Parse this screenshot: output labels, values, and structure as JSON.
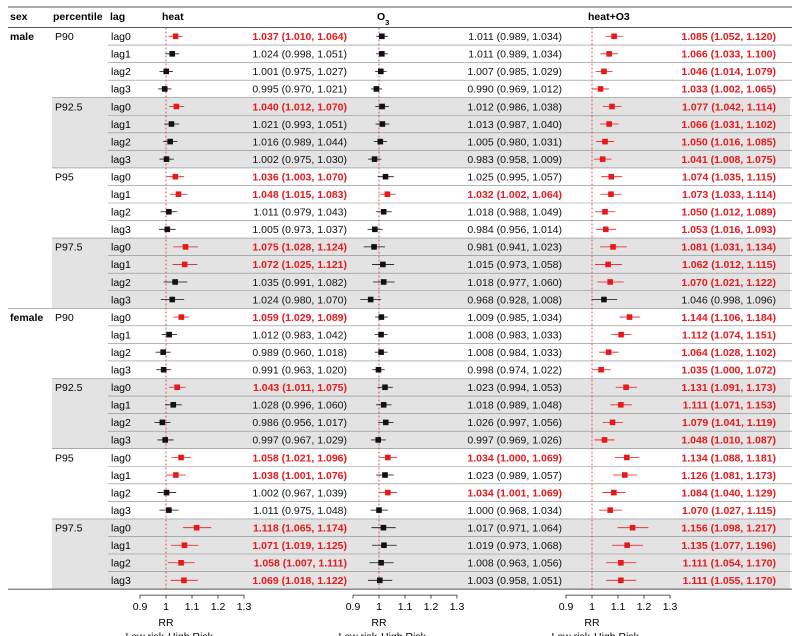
{
  "headers": {
    "sex": "sex",
    "percentile": "percentile",
    "lag": "lag",
    "heat": "heat",
    "o3": "O3",
    "heat_o3": "heat+O3"
  },
  "axis": {
    "xlabel": "RR",
    "low_label": "Low risk",
    "high_label": "High Risk",
    "ticks": [
      "0.9",
      "1",
      "1.1",
      "1.2",
      "1.3"
    ]
  },
  "colors": {
    "significant": "#e8191c",
    "nonsignificant": "#111111",
    "band": "#e3e3e3",
    "ref_line": "#cc3333"
  },
  "chart_data": {
    "type": "forest",
    "xlim": [
      0.9,
      1.3
    ],
    "reference_value": 1,
    "panels": [
      "heat",
      "O3",
      "heat+O3"
    ],
    "rows": [
      {
        "sex": "male",
        "percentile": "P90",
        "lag": "lag0",
        "heat": {
          "text": "1.037 (1.010, 1.064)",
          "est": 1.037,
          "lo": 1.01,
          "hi": 1.064,
          "sig": true
        },
        "o3": {
          "text": "1.011 (0.989, 1.034)",
          "est": 1.011,
          "lo": 0.989,
          "hi": 1.034,
          "sig": false
        },
        "both": {
          "text": "1.085 (1.052, 1.120)",
          "est": 1.085,
          "lo": 1.052,
          "hi": 1.12,
          "sig": true
        }
      },
      {
        "sex": "",
        "percentile": "",
        "lag": "lag1",
        "heat": {
          "text": "1.024 (0.998, 1.051)",
          "est": 1.024,
          "lo": 0.998,
          "hi": 1.051,
          "sig": false
        },
        "o3": {
          "text": "1.011 (0.989, 1.034)",
          "est": 1.011,
          "lo": 0.989,
          "hi": 1.034,
          "sig": false
        },
        "both": {
          "text": "1.066 (1.033, 1.100)",
          "est": 1.066,
          "lo": 1.033,
          "hi": 1.1,
          "sig": true
        }
      },
      {
        "sex": "",
        "percentile": "",
        "lag": "lag2",
        "heat": {
          "text": "1.001 (0.975, 1.027)",
          "est": 1.001,
          "lo": 0.975,
          "hi": 1.027,
          "sig": false
        },
        "o3": {
          "text": "1.007 (0.985, 1.029)",
          "est": 1.007,
          "lo": 0.985,
          "hi": 1.029,
          "sig": false
        },
        "both": {
          "text": "1.046 (1.014, 1.079)",
          "est": 1.046,
          "lo": 1.014,
          "hi": 1.079,
          "sig": true
        }
      },
      {
        "sex": "",
        "percentile": "",
        "lag": "lag3",
        "heat": {
          "text": "0.995 (0.970, 1.021)",
          "est": 0.995,
          "lo": 0.97,
          "hi": 1.021,
          "sig": false
        },
        "o3": {
          "text": "0.990 (0.969, 1.012)",
          "est": 0.99,
          "lo": 0.969,
          "hi": 1.012,
          "sig": false
        },
        "both": {
          "text": "1.033 (1.002, 1.065)",
          "est": 1.033,
          "lo": 1.002,
          "hi": 1.065,
          "sig": true
        }
      },
      {
        "sex": "",
        "percentile": "P92.5",
        "lag": "lag0",
        "heat": {
          "text": "1.040 (1.012, 1.070)",
          "est": 1.04,
          "lo": 1.012,
          "hi": 1.07,
          "sig": true
        },
        "o3": {
          "text": "1.012 (0.986, 1.038)",
          "est": 1.012,
          "lo": 0.986,
          "hi": 1.038,
          "sig": false
        },
        "both": {
          "text": "1.077 (1.042, 1.114)",
          "est": 1.077,
          "lo": 1.042,
          "hi": 1.114,
          "sig": true
        }
      },
      {
        "sex": "",
        "percentile": "",
        "lag": "lag1",
        "heat": {
          "text": "1.021 (0.993, 1.051)",
          "est": 1.021,
          "lo": 0.993,
          "hi": 1.051,
          "sig": false
        },
        "o3": {
          "text": "1.013 (0.987, 1.040)",
          "est": 1.013,
          "lo": 0.987,
          "hi": 1.04,
          "sig": false
        },
        "both": {
          "text": "1.066 (1.031, 1.102)",
          "est": 1.066,
          "lo": 1.031,
          "hi": 1.102,
          "sig": true
        }
      },
      {
        "sex": "",
        "percentile": "",
        "lag": "lag2",
        "heat": {
          "text": "1.016 (0.989, 1.044)",
          "est": 1.016,
          "lo": 0.989,
          "hi": 1.044,
          "sig": false
        },
        "o3": {
          "text": "1.005 (0.980, 1.031)",
          "est": 1.005,
          "lo": 0.98,
          "hi": 1.031,
          "sig": false
        },
        "both": {
          "text": "1.050 (1.016, 1.085)",
          "est": 1.05,
          "lo": 1.016,
          "hi": 1.085,
          "sig": true
        }
      },
      {
        "sex": "",
        "percentile": "",
        "lag": "lag3",
        "heat": {
          "text": "1.002 (0.975, 1.030)",
          "est": 1.002,
          "lo": 0.975,
          "hi": 1.03,
          "sig": false
        },
        "o3": {
          "text": "0.983 (0.958, 1.009)",
          "est": 0.983,
          "lo": 0.958,
          "hi": 1.009,
          "sig": false
        },
        "both": {
          "text": "1.041 (1.008, 1.075)",
          "est": 1.041,
          "lo": 1.008,
          "hi": 1.075,
          "sig": true
        }
      },
      {
        "sex": "",
        "percentile": "P95",
        "lag": "lag0",
        "heat": {
          "text": "1.036 (1.003, 1.070)",
          "est": 1.036,
          "lo": 1.003,
          "hi": 1.07,
          "sig": true
        },
        "o3": {
          "text": "1.025 (0.995, 1.057)",
          "est": 1.025,
          "lo": 0.995,
          "hi": 1.057,
          "sig": false
        },
        "both": {
          "text": "1.074 (1.035, 1.115)",
          "est": 1.074,
          "lo": 1.035,
          "hi": 1.115,
          "sig": true
        }
      },
      {
        "sex": "",
        "percentile": "",
        "lag": "lag1",
        "heat": {
          "text": "1.048 (1.015, 1.083)",
          "est": 1.048,
          "lo": 1.015,
          "hi": 1.083,
          "sig": true
        },
        "o3": {
          "text": "1.032 (1.002, 1.064)",
          "est": 1.032,
          "lo": 1.002,
          "hi": 1.064,
          "sig": true
        },
        "both": {
          "text": "1.073 (1.033, 1.114)",
          "est": 1.073,
          "lo": 1.033,
          "hi": 1.114,
          "sig": true
        }
      },
      {
        "sex": "",
        "percentile": "",
        "lag": "lag2",
        "heat": {
          "text": "1.011 (0.979, 1.043)",
          "est": 1.011,
          "lo": 0.979,
          "hi": 1.043,
          "sig": false
        },
        "o3": {
          "text": "1.018 (0.988, 1.049)",
          "est": 1.018,
          "lo": 0.988,
          "hi": 1.049,
          "sig": false
        },
        "both": {
          "text": "1.050 (1.012, 1.089)",
          "est": 1.05,
          "lo": 1.012,
          "hi": 1.089,
          "sig": true
        }
      },
      {
        "sex": "",
        "percentile": "",
        "lag": "lag3",
        "heat": {
          "text": "1.005 (0.973, 1.037)",
          "est": 1.005,
          "lo": 0.973,
          "hi": 1.037,
          "sig": false
        },
        "o3": {
          "text": "0.984 (0.956, 1.014)",
          "est": 0.984,
          "lo": 0.956,
          "hi": 1.014,
          "sig": false
        },
        "both": {
          "text": "1.053 (1.016, 1.093)",
          "est": 1.053,
          "lo": 1.016,
          "hi": 1.093,
          "sig": true
        }
      },
      {
        "sex": "",
        "percentile": "P97.5",
        "lag": "lag0",
        "heat": {
          "text": "1.075 (1.028, 1.124)",
          "est": 1.075,
          "lo": 1.028,
          "hi": 1.124,
          "sig": true
        },
        "o3": {
          "text": "0.981 (0.941, 1.023)",
          "est": 0.981,
          "lo": 0.941,
          "hi": 1.023,
          "sig": false
        },
        "both": {
          "text": "1.081 (1.031, 1.134)",
          "est": 1.081,
          "lo": 1.031,
          "hi": 1.134,
          "sig": true
        }
      },
      {
        "sex": "",
        "percentile": "",
        "lag": "lag1",
        "heat": {
          "text": "1.072 (1.025, 1.121)",
          "est": 1.072,
          "lo": 1.025,
          "hi": 1.121,
          "sig": true
        },
        "o3": {
          "text": "1.015 (0.973, 1.058)",
          "est": 1.015,
          "lo": 0.973,
          "hi": 1.058,
          "sig": false
        },
        "both": {
          "text": "1.062 (1.012, 1.115)",
          "est": 1.062,
          "lo": 1.012,
          "hi": 1.115,
          "sig": true
        }
      },
      {
        "sex": "",
        "percentile": "",
        "lag": "lag2",
        "heat": {
          "text": "1.035 (0.991, 1.082)",
          "est": 1.035,
          "lo": 0.991,
          "hi": 1.082,
          "sig": false
        },
        "o3": {
          "text": "1.018 (0.977, 1.060)",
          "est": 1.018,
          "lo": 0.977,
          "hi": 1.06,
          "sig": false
        },
        "both": {
          "text": "1.070 (1.021, 1.122)",
          "est": 1.07,
          "lo": 1.021,
          "hi": 1.122,
          "sig": true
        }
      },
      {
        "sex": "",
        "percentile": "",
        "lag": "lag3",
        "heat": {
          "text": "1.024 (0.980, 1.070)",
          "est": 1.024,
          "lo": 0.98,
          "hi": 1.07,
          "sig": false
        },
        "o3": {
          "text": "0.968 (0.928, 1.008)",
          "est": 0.968,
          "lo": 0.928,
          "hi": 1.008,
          "sig": false
        },
        "both": {
          "text": "1.046 (0.998, 1.096)",
          "est": 1.046,
          "lo": 0.998,
          "hi": 1.096,
          "sig": false
        }
      },
      {
        "sex": "female",
        "percentile": "P90",
        "lag": "lag0",
        "heat": {
          "text": "1.059 (1.029, 1.089)",
          "est": 1.059,
          "lo": 1.029,
          "hi": 1.089,
          "sig": true
        },
        "o3": {
          "text": "1.009 (0.985, 1.034)",
          "est": 1.009,
          "lo": 0.985,
          "hi": 1.034,
          "sig": false
        },
        "both": {
          "text": "1.144 (1.106, 1.184)",
          "est": 1.144,
          "lo": 1.106,
          "hi": 1.184,
          "sig": true
        }
      },
      {
        "sex": "",
        "percentile": "",
        "lag": "lag1",
        "heat": {
          "text": "1.012 (0.983, 1.042)",
          "est": 1.012,
          "lo": 0.983,
          "hi": 1.042,
          "sig": false
        },
        "o3": {
          "text": "1.008 (0.983, 1.033)",
          "est": 1.008,
          "lo": 0.983,
          "hi": 1.033,
          "sig": false
        },
        "both": {
          "text": "1.112 (1.074, 1.151)",
          "est": 1.112,
          "lo": 1.074,
          "hi": 1.151,
          "sig": true
        }
      },
      {
        "sex": "",
        "percentile": "",
        "lag": "lag2",
        "heat": {
          "text": "0.989 (0.960, 1.018)",
          "est": 0.989,
          "lo": 0.96,
          "hi": 1.018,
          "sig": false
        },
        "o3": {
          "text": "1.008 (0.984, 1.033)",
          "est": 1.008,
          "lo": 0.984,
          "hi": 1.033,
          "sig": false
        },
        "both": {
          "text": "1.064 (1.028, 1.102)",
          "est": 1.064,
          "lo": 1.028,
          "hi": 1.102,
          "sig": true
        }
      },
      {
        "sex": "",
        "percentile": "",
        "lag": "lag3",
        "heat": {
          "text": "0.991 (0.963, 1.020)",
          "est": 0.991,
          "lo": 0.963,
          "hi": 1.02,
          "sig": false
        },
        "o3": {
          "text": "0.998 (0.974, 1.022)",
          "est": 0.998,
          "lo": 0.974,
          "hi": 1.022,
          "sig": false
        },
        "both": {
          "text": "1.035 (1.000, 1.072)",
          "est": 1.035,
          "lo": 1.0,
          "hi": 1.072,
          "sig": true
        }
      },
      {
        "sex": "",
        "percentile": "P92.5",
        "lag": "lag0",
        "heat": {
          "text": "1.043 (1.011, 1.075)",
          "est": 1.043,
          "lo": 1.011,
          "hi": 1.075,
          "sig": true
        },
        "o3": {
          "text": "1.023 (0.994, 1.053)",
          "est": 1.023,
          "lo": 0.994,
          "hi": 1.053,
          "sig": false
        },
        "both": {
          "text": "1.131 (1.091, 1.173)",
          "est": 1.131,
          "lo": 1.091,
          "hi": 1.173,
          "sig": true
        }
      },
      {
        "sex": "",
        "percentile": "",
        "lag": "lag1",
        "heat": {
          "text": "1.028 (0.996, 1.060)",
          "est": 1.028,
          "lo": 0.996,
          "hi": 1.06,
          "sig": false
        },
        "o3": {
          "text": "1.018 (0.989, 1.048)",
          "est": 1.018,
          "lo": 0.989,
          "hi": 1.048,
          "sig": false
        },
        "both": {
          "text": "1.111 (1.071, 1.153)",
          "est": 1.111,
          "lo": 1.071,
          "hi": 1.153,
          "sig": true
        }
      },
      {
        "sex": "",
        "percentile": "",
        "lag": "lag2",
        "heat": {
          "text": "0.986 (0.956, 1.017)",
          "est": 0.986,
          "lo": 0.956,
          "hi": 1.017,
          "sig": false
        },
        "o3": {
          "text": "1.026 (0.997, 1.056)",
          "est": 1.026,
          "lo": 0.997,
          "hi": 1.056,
          "sig": false
        },
        "both": {
          "text": "1.079 (1.041, 1.119)",
          "est": 1.079,
          "lo": 1.041,
          "hi": 1.119,
          "sig": true
        }
      },
      {
        "sex": "",
        "percentile": "",
        "lag": "lag3",
        "heat": {
          "text": "0.997 (0.967, 1.029)",
          "est": 0.997,
          "lo": 0.967,
          "hi": 1.029,
          "sig": false
        },
        "o3": {
          "text": "0.997 (0.969, 1.026)",
          "est": 0.997,
          "lo": 0.969,
          "hi": 1.026,
          "sig": false
        },
        "both": {
          "text": "1.048 (1.010, 1.087)",
          "est": 1.048,
          "lo": 1.01,
          "hi": 1.087,
          "sig": true
        }
      },
      {
        "sex": "",
        "percentile": "P95",
        "lag": "lag0",
        "heat": {
          "text": "1.058 (1.021, 1.096)",
          "est": 1.058,
          "lo": 1.021,
          "hi": 1.096,
          "sig": true
        },
        "o3": {
          "text": "1.034 (1.000, 1.069)",
          "est": 1.034,
          "lo": 1.0,
          "hi": 1.069,
          "sig": true
        },
        "both": {
          "text": "1.134 (1.088, 1.181)",
          "est": 1.134,
          "lo": 1.088,
          "hi": 1.181,
          "sig": true
        }
      },
      {
        "sex": "",
        "percentile": "",
        "lag": "lag1",
        "heat": {
          "text": "1.038 (1.001, 1.076)",
          "est": 1.038,
          "lo": 1.001,
          "hi": 1.076,
          "sig": true
        },
        "o3": {
          "text": "1.023 (0.989, 1.057)",
          "est": 1.023,
          "lo": 0.989,
          "hi": 1.057,
          "sig": false
        },
        "both": {
          "text": "1.126 (1.081, 1.173)",
          "est": 1.126,
          "lo": 1.081,
          "hi": 1.173,
          "sig": true
        }
      },
      {
        "sex": "",
        "percentile": "",
        "lag": "lag2",
        "heat": {
          "text": "1.002 (0.967, 1.039)",
          "est": 1.002,
          "lo": 0.967,
          "hi": 1.039,
          "sig": false
        },
        "o3": {
          "text": "1.034 (1.001, 1.069)",
          "est": 1.034,
          "lo": 1.001,
          "hi": 1.069,
          "sig": true
        },
        "both": {
          "text": "1.084 (1.040, 1.129)",
          "est": 1.084,
          "lo": 1.04,
          "hi": 1.129,
          "sig": true
        }
      },
      {
        "sex": "",
        "percentile": "",
        "lag": "lag3",
        "heat": {
          "text": "1.011 (0.975, 1.048)",
          "est": 1.011,
          "lo": 0.975,
          "hi": 1.048,
          "sig": false
        },
        "o3": {
          "text": "1.000 (0.968, 1.034)",
          "est": 1.0,
          "lo": 0.968,
          "hi": 1.034,
          "sig": false
        },
        "both": {
          "text": "1.070 (1.027, 1.115)",
          "est": 1.07,
          "lo": 1.027,
          "hi": 1.115,
          "sig": true
        }
      },
      {
        "sex": "",
        "percentile": "P97.5",
        "lag": "lag0",
        "heat": {
          "text": "1.118 (1.065, 1.174)",
          "est": 1.118,
          "lo": 1.065,
          "hi": 1.174,
          "sig": true
        },
        "o3": {
          "text": "1.017 (0.971, 1.064)",
          "est": 1.017,
          "lo": 0.971,
          "hi": 1.064,
          "sig": false
        },
        "both": {
          "text": "1.156 (1.098, 1.217)",
          "est": 1.156,
          "lo": 1.098,
          "hi": 1.217,
          "sig": true
        }
      },
      {
        "sex": "",
        "percentile": "",
        "lag": "lag1",
        "heat": {
          "text": "1.071 (1.019, 1.125)",
          "est": 1.071,
          "lo": 1.019,
          "hi": 1.125,
          "sig": true
        },
        "o3": {
          "text": "1.019 (0.973, 1.068)",
          "est": 1.019,
          "lo": 0.973,
          "hi": 1.068,
          "sig": false
        },
        "both": {
          "text": "1.135 (1.077, 1.196)",
          "est": 1.135,
          "lo": 1.077,
          "hi": 1.196,
          "sig": true
        }
      },
      {
        "sex": "",
        "percentile": "",
        "lag": "lag2",
        "heat": {
          "text": "1.058 (1.007, 1.111)",
          "est": 1.058,
          "lo": 1.007,
          "hi": 1.111,
          "sig": true
        },
        "o3": {
          "text": "1.008 (0.963, 1.056)",
          "est": 1.008,
          "lo": 0.963,
          "hi": 1.056,
          "sig": false
        },
        "both": {
          "text": "1.111 (1.054, 1.170)",
          "est": 1.111,
          "lo": 1.054,
          "hi": 1.17,
          "sig": true
        }
      },
      {
        "sex": "",
        "percentile": "",
        "lag": "lag3",
        "heat": {
          "text": "1.069 (1.018, 1.122)",
          "est": 1.069,
          "lo": 1.018,
          "hi": 1.122,
          "sig": true
        },
        "o3": {
          "text": "1.003 (0.958, 1.051)",
          "est": 1.003,
          "lo": 0.958,
          "hi": 1.051,
          "sig": false
        },
        "both": {
          "text": "1.111 (1.055, 1.170)",
          "est": 1.111,
          "lo": 1.055,
          "hi": 1.17,
          "sig": true
        }
      }
    ]
  }
}
